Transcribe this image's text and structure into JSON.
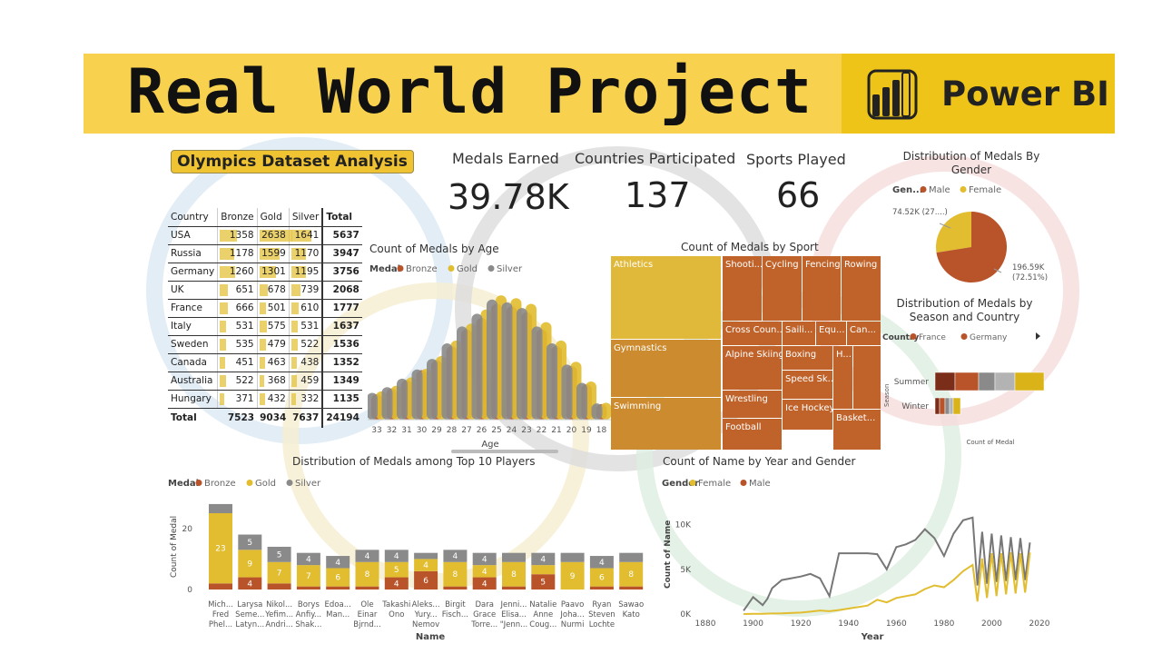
{
  "banner": {
    "title": "Real World Project",
    "brand": "Power BI",
    "brand_icon": "power-bi-icon"
  },
  "dashboard_title": "Olympics Dataset Analysis",
  "cards": [
    {
      "label": "Medals Earned",
      "value": "39.78K"
    },
    {
      "label": "Countries Participated",
      "value": "137"
    },
    {
      "label": "Sports Played",
      "value": "66"
    }
  ],
  "colors": {
    "bronze": "#b8532a",
    "gold": "#e1bd2f",
    "silver": "#8a8a8a",
    "treemap_gold": "#e0b83a",
    "treemap_orange": "#cd8b2f",
    "treemap_bronze": "#c0632a"
  },
  "chart_data": [
    {
      "type": "table",
      "columns": [
        "Country",
        "Bronze",
        "Gold",
        "Silver",
        "Total"
      ],
      "rows": [
        [
          "USA",
          1358,
          2638,
          1641,
          5637
        ],
        [
          "Russia",
          1178,
          1599,
          1170,
          3947
        ],
        [
          "Germany",
          1260,
          1301,
          1195,
          3756
        ],
        [
          "UK",
          651,
          678,
          739,
          2068
        ],
        [
          "France",
          666,
          501,
          610,
          1777
        ],
        [
          "Italy",
          531,
          575,
          531,
          1637
        ],
        [
          "Sweden",
          535,
          479,
          522,
          1536
        ],
        [
          "Canada",
          451,
          463,
          438,
          1352
        ],
        [
          "Australia",
          522,
          368,
          459,
          1349
        ],
        [
          "Hungary",
          371,
          432,
          332,
          1135
        ]
      ],
      "total": [
        "Total",
        7523,
        9034,
        7637,
        24194
      ]
    },
    {
      "type": "area",
      "title": "Count of Medals by Age",
      "xlabel": "Age",
      "legend_title": "Medal",
      "legend": [
        "Bronze",
        "Gold",
        "Silver"
      ],
      "categories": [
        "33",
        "32",
        "31",
        "30",
        "29",
        "28",
        "27",
        "26",
        "25",
        "24",
        "23",
        "22",
        "21",
        "20",
        "19",
        "18"
      ],
      "series": [
        {
          "name": "Bronze",
          "values": [
            180,
            220,
            280,
            350,
            420,
            520,
            640,
            720,
            820,
            800,
            760,
            640,
            520,
            380,
            250,
            110
          ]
        },
        {
          "name": "Gold",
          "values": [
            200,
            240,
            300,
            360,
            450,
            560,
            680,
            780,
            880,
            860,
            820,
            690,
            560,
            410,
            270,
            120
          ]
        },
        {
          "name": "Silver",
          "values": [
            190,
            230,
            290,
            355,
            430,
            540,
            660,
            750,
            850,
            830,
            790,
            660,
            540,
            390,
            260,
            115
          ]
        }
      ]
    },
    {
      "type": "treemap",
      "title": "Count of Medals by Sport",
      "items": [
        "Athletics",
        "Gymnastics",
        "Swimming",
        "Shooti...",
        "Cycling",
        "Fencing",
        "Rowing",
        "Cross Coun...",
        "Saili...",
        "Equ...",
        "Can...",
        "Alpine Skiing",
        "Boxing",
        "H...",
        "Wrestling",
        "Speed Sk...",
        "Football",
        "Ice Hockey",
        "Basket..."
      ]
    },
    {
      "type": "pie",
      "title": "Distribution of Medals By Gender",
      "legend_title": "Gen...",
      "legend": [
        "Male",
        "Female"
      ],
      "values": [
        196.59,
        74.52
      ],
      "labels": [
        "196.59K\n(72.51%)",
        "74.52K (27....)"
      ]
    },
    {
      "type": "bar",
      "title": "Distribution of Medals by Season and Country",
      "legend_title": "Country",
      "legend": [
        "France",
        "Germany"
      ],
      "categories": [
        "Summer",
        "Winter"
      ],
      "ylabel": "Season",
      "xlabel": "Count of Medal",
      "segments": {
        "Summer": [
          {
            "color": "#7a2e1a",
            "value": 22
          },
          {
            "color": "#b8532a",
            "value": 26
          },
          {
            "color": "#8a8a8a",
            "value": 18
          },
          {
            "color": "#b3b3b3",
            "value": 22
          },
          {
            "color": "#d9b317",
            "value": 32
          }
        ],
        "Winter": [
          {
            "color": "#7a2e1a",
            "value": 5
          },
          {
            "color": "#b8532a",
            "value": 6
          },
          {
            "color": "#8a8a8a",
            "value": 5
          },
          {
            "color": "#b3b3b3",
            "value": 4
          },
          {
            "color": "#d9b317",
            "value": 8
          }
        ]
      }
    },
    {
      "type": "bar",
      "title": "Distribution of Medals among Top 10 Players",
      "xlabel": "Name",
      "ylabel": "Count of Medal",
      "legend_title": "Medal",
      "legend": [
        "Bronze",
        "Gold",
        "Silver"
      ],
      "ylim": [
        0,
        28
      ],
      "yticks": [
        "0",
        "20"
      ],
      "categories": [
        [
          "Mich...",
          "Fred",
          "Phel..."
        ],
        [
          "Larysa",
          "Seme...",
          "Latyn..."
        ],
        [
          "Nikol...",
          "Yefim...",
          "Andri..."
        ],
        [
          "Borys",
          "Anfiy...",
          "Shak..."
        ],
        [
          "Edoa...",
          "Man..."
        ],
        [
          "Ole",
          "Einar",
          "Bjrnd..."
        ],
        [
          "Takashi",
          "Ono"
        ],
        [
          "Aleks...",
          "Yury...",
          "Nemov"
        ],
        [
          "Birgit",
          "Fisch..."
        ],
        [
          "Dara",
          "Grace",
          "Torre..."
        ],
        [
          "Jenni...",
          "Elisa...",
          "\"Jenn..."
        ],
        [
          "Natalie",
          "Anne",
          "Coug..."
        ],
        [
          "Paavo",
          "Joha...",
          "Nurmi"
        ],
        [
          "Ryan",
          "Steven",
          "Lochte"
        ],
        [
          "Sawao",
          "Kato"
        ]
      ],
      "series": [
        {
          "name": "Bronze",
          "values": [
            2,
            4,
            2,
            1,
            1,
            1,
            4,
            6,
            1,
            4,
            1,
            5,
            0,
            1,
            1
          ]
        },
        {
          "name": "Gold",
          "values": [
            23,
            9,
            7,
            7,
            6,
            8,
            5,
            4,
            8,
            4,
            8,
            3,
            9,
            6,
            8
          ]
        },
        {
          "name": "Silver",
          "values": [
            3,
            5,
            5,
            4,
            4,
            4,
            4,
            2,
            4,
            4,
            3,
            4,
            3,
            4,
            3
          ]
        }
      ],
      "labels": {
        "Bronze": [
          "",
          "4",
          "",
          "",
          "",
          "",
          "4",
          "6",
          "",
          "4",
          "",
          "5",
          "",
          "",
          ""
        ],
        "Gold": [
          "23",
          "9",
          "7",
          "7",
          "6",
          "8",
          "5",
          "4",
          "8",
          "4",
          "8",
          "",
          "9",
          "6",
          "8"
        ],
        "Silver": [
          "",
          "5",
          "5",
          "4",
          "4",
          "4",
          "4",
          "",
          "4",
          "4",
          "",
          "4",
          "",
          "4",
          ""
        ]
      }
    },
    {
      "type": "line",
      "title": "Count of Name by Year and Gender",
      "xlabel": "Year",
      "ylabel": "Count of Name",
      "legend_title": "Gender",
      "legend": [
        "Female",
        "Male"
      ],
      "xlim": [
        1880,
        2020
      ],
      "ylim": [
        0,
        12000
      ],
      "xticks": [
        "1880",
        "1900",
        "1920",
        "1940",
        "1960",
        "1980",
        "2000",
        "2020"
      ],
      "yticks": [
        "0K",
        "5K",
        "10K"
      ],
      "series": [
        {
          "name": "Male",
          "x": [
            1896,
            1900,
            1904,
            1906,
            1908,
            1912,
            1920,
            1924,
            1928,
            1932,
            1936,
            1948,
            1952,
            1956,
            1960,
            1964,
            1968,
            1972,
            1976,
            1980,
            1984,
            1988,
            1992,
            1994,
            1996,
            1998,
            2000,
            2002,
            2004,
            2006,
            2008,
            2010,
            2012,
            2014,
            2016
          ],
          "y": [
            380,
            1900,
            1000,
            1700,
            2900,
            3800,
            4200,
            4500,
            4000,
            2000,
            6800,
            6800,
            6700,
            5000,
            7500,
            7800,
            8300,
            9500,
            8500,
            6500,
            9000,
            10500,
            10800,
            3200,
            9200,
            3400,
            9000,
            3600,
            8800,
            3700,
            8600,
            3800,
            8500,
            3800,
            8000
          ]
        },
        {
          "name": "Female",
          "x": [
            1896,
            1900,
            1904,
            1908,
            1912,
            1920,
            1924,
            1928,
            1932,
            1936,
            1948,
            1952,
            1956,
            1960,
            1964,
            1968,
            1972,
            1976,
            1980,
            1984,
            1988,
            1992,
            1994,
            1996,
            1998,
            2000,
            2002,
            2004,
            2006,
            2008,
            2010,
            2012,
            2014,
            2016
          ],
          "y": [
            0,
            30,
            20,
            60,
            70,
            160,
            260,
            400,
            320,
            450,
            950,
            1600,
            1300,
            1800,
            2000,
            2200,
            2800,
            3200,
            3000,
            3800,
            4800,
            5500,
            1400,
            6200,
            1800,
            6800,
            2000,
            6800,
            2200,
            6900,
            2300,
            6800,
            2400,
            6900
          ]
        }
      ]
    }
  ]
}
